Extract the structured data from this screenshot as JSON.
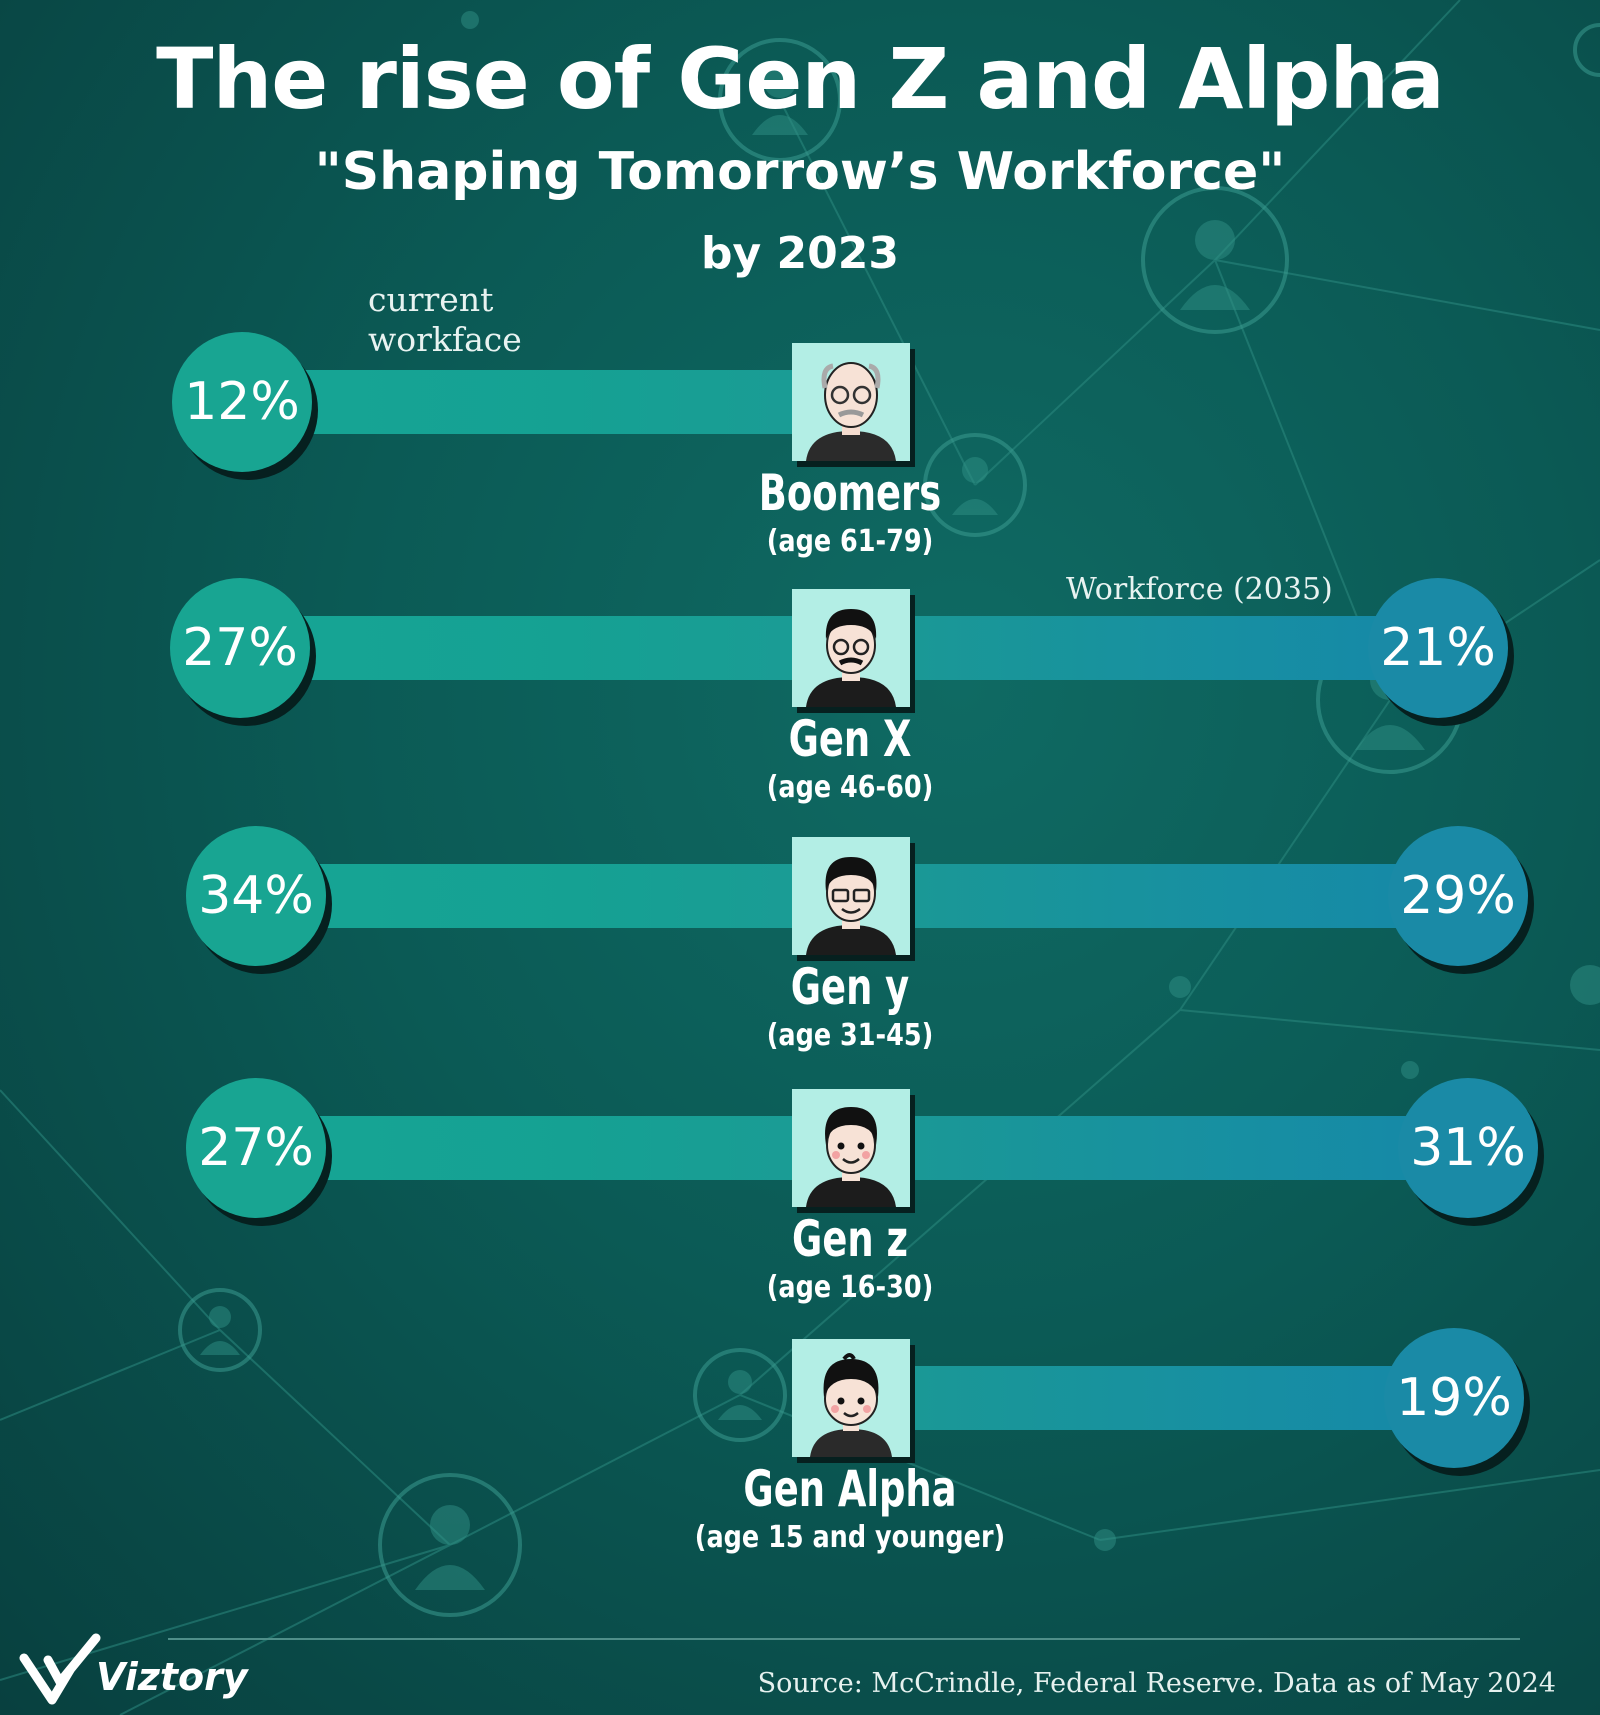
{
  "header": {
    "title": "The rise  of Gen Z and Alpha",
    "subtitle": "\"Shaping Tomorrow’s Workforce\"",
    "year_line": "by 2023"
  },
  "labels": {
    "current": "current\nworkface",
    "future": "Workforce (2035)"
  },
  "chart_data": {
    "type": "bar",
    "categories": [
      "Boomers",
      "Gen X",
      "Gen y",
      "Gen z",
      "Gen Alpha"
    ],
    "age_ranges": [
      "(age 61-79)",
      "(age 46-60)",
      "(age 31-45)",
      "(age 16-30)",
      "(age 15 and younger)"
    ],
    "series": [
      {
        "name": "current workface",
        "values": [
          12,
          27,
          34,
          27,
          null
        ],
        "labels": [
          "12%",
          "27%",
          "34%",
          "27%",
          ""
        ]
      },
      {
        "name": "Workforce (2035)",
        "values": [
          null,
          21,
          29,
          31,
          19
        ],
        "labels": [
          "",
          "21%",
          "29%",
          "31%",
          "19%"
        ]
      }
    ],
    "colors": {
      "current": "#18a592",
      "future": "#1a8aa6"
    }
  },
  "footer": {
    "brand": "Viztory",
    "source": "Source: McCrindle, Federal Reserve. Data as of May 2024"
  }
}
